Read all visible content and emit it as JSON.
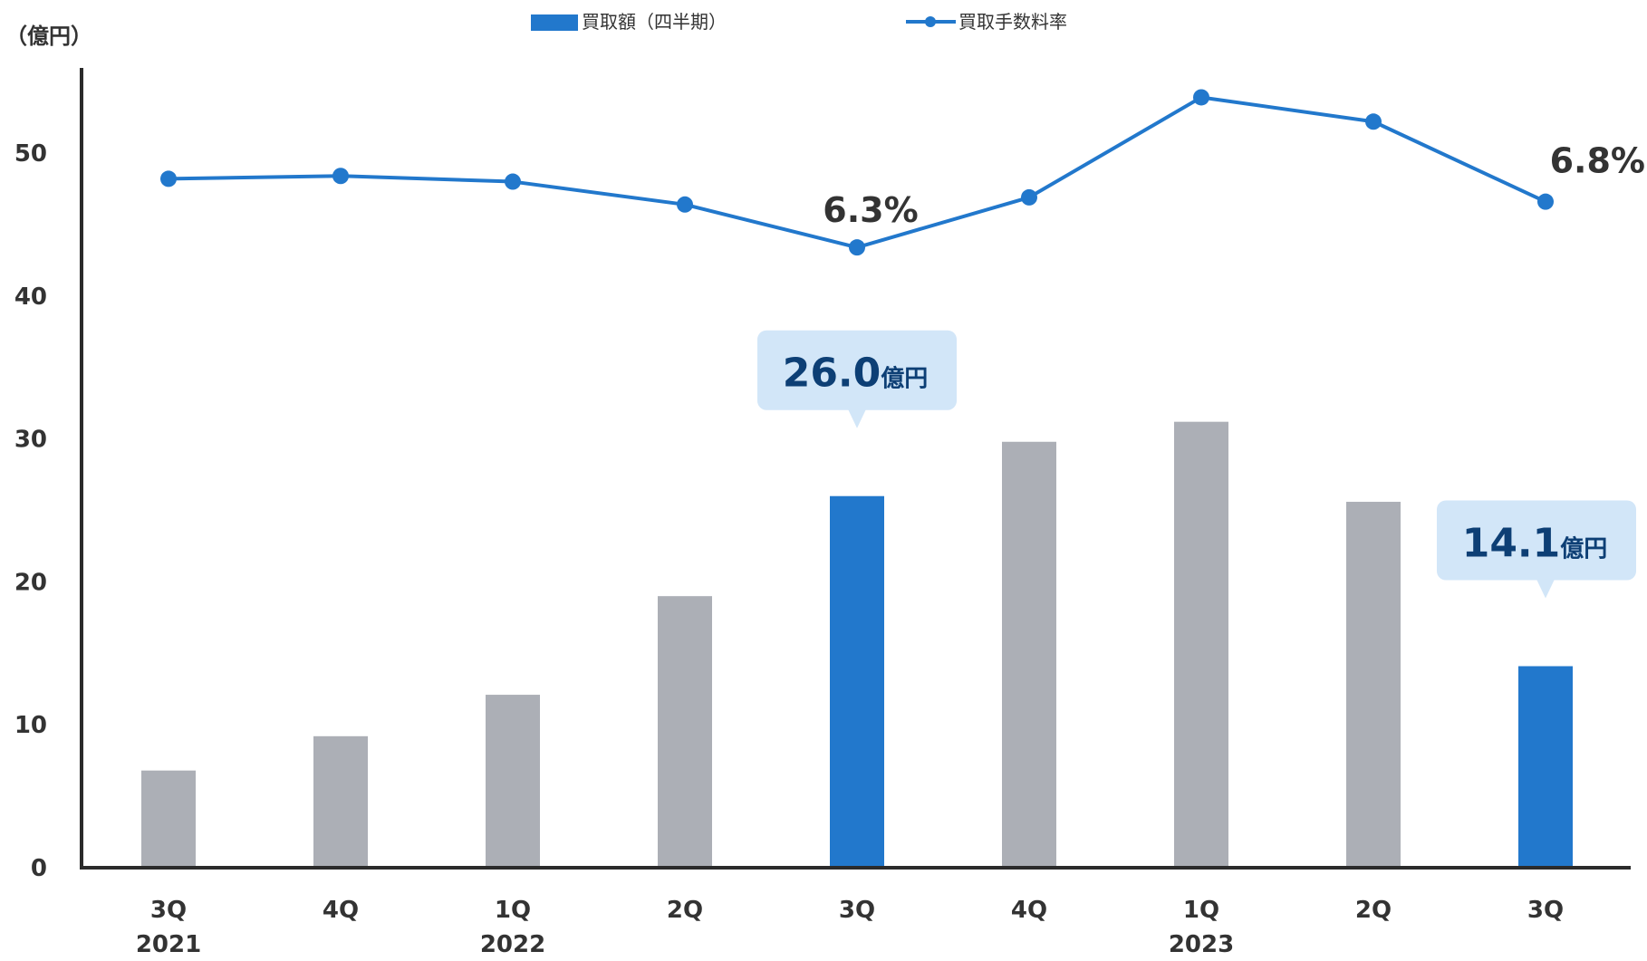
{
  "chart_data": {
    "type": "bar",
    "y_unit_label": "（億円）",
    "legend": {
      "placement": "top-center",
      "items": [
        {
          "label": "買取額（四半期）",
          "marker": "bar"
        },
        {
          "label": "買取手数料率",
          "marker": "line"
        }
      ]
    },
    "yaxis": {
      "ylim": [
        0,
        55
      ],
      "ticks": [
        "0",
        "10",
        "20",
        "30",
        "40",
        "50"
      ]
    },
    "categories": [
      {
        "quarter": "3Q",
        "year": "2021"
      },
      {
        "quarter": "4Q",
        "year": ""
      },
      {
        "quarter": "1Q",
        "year": "2022"
      },
      {
        "quarter": "2Q",
        "year": ""
      },
      {
        "quarter": "3Q",
        "year": ""
      },
      {
        "quarter": "4Q",
        "year": ""
      },
      {
        "quarter": "1Q",
        "year": "2023"
      },
      {
        "quarter": "2Q",
        "year": ""
      },
      {
        "quarter": "3Q",
        "year": ""
      }
    ],
    "series": [
      {
        "name": "買取額（四半期）",
        "kind": "bar",
        "values": [
          6.8,
          9.2,
          12.1,
          19.0,
          26.0,
          29.8,
          31.2,
          25.6,
          14.1
        ],
        "highlight_indices": [
          4,
          8
        ]
      },
      {
        "name": "買取手数料率",
        "kind": "line",
        "plotted_on_left_axis_as": [
          48.2,
          48.4,
          48.0,
          46.4,
          43.4,
          46.9,
          53.9,
          52.2,
          46.6
        ]
      }
    ],
    "annotations": [
      {
        "index": 4,
        "series": "買取額（四半期）",
        "value": "26.0",
        "unit": "億円"
      },
      {
        "index": 8,
        "series": "買取額（四半期）",
        "value": "14.1",
        "unit": "億円"
      },
      {
        "index": 4,
        "series": "買取手数料率",
        "text": "6.3%"
      },
      {
        "index": 8,
        "series": "買取手数料率",
        "text": "6.8%"
      }
    ],
    "colors": {
      "bar_default": "#acafb6",
      "bar_highlight": "#2278cc",
      "line": "#2278cc",
      "callout_bg": "#d2e6f8",
      "callout_text": "#0d3f75",
      "axis": "#2b2b2b",
      "text": "#333333"
    }
  }
}
